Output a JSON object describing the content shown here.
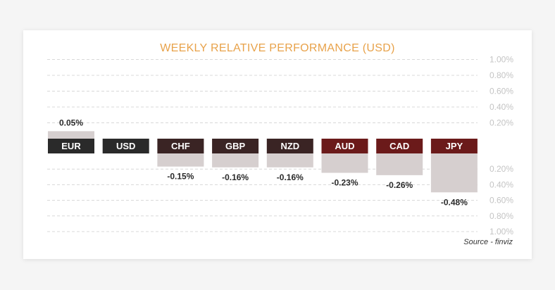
{
  "colors": {
    "title": "#e8a24a",
    "tick": "#c4c4c4",
    "grid": "#d8d8d8",
    "bar": "#d6cfcf",
    "label_dark": "#2a2a2a",
    "label_mid": "#3a2424",
    "label_red": "#6b1a1a",
    "value_text": "#2a2a2a"
  },
  "chart_data": {
    "type": "bar",
    "title": "WEEKLY RELATIVE PERFORMANCE (USD)",
    "categories": [
      "EUR",
      "USD",
      "CHF",
      "GBP",
      "NZD",
      "AUD",
      "CAD",
      "JPY"
    ],
    "values": [
      0.05,
      0,
      -0.15,
      -0.16,
      -0.16,
      -0.23,
      -0.26,
      -0.48
    ],
    "value_labels": [
      "0.05%",
      "",
      "-0.15%",
      "-0.16%",
      "-0.16%",
      "-0.23%",
      "-0.26%",
      "-0.48%"
    ],
    "yticks_positive": [
      "1.00%",
      "0.80%",
      "0.60%",
      "0.40%",
      "0.20%"
    ],
    "yticks_negative": [
      "0.20%",
      "0.40%",
      "0.60%",
      "0.80%",
      "1.00%"
    ],
    "ylim": [
      -1.0,
      1.0
    ],
    "grid": true
  },
  "source": "Source - finviz"
}
